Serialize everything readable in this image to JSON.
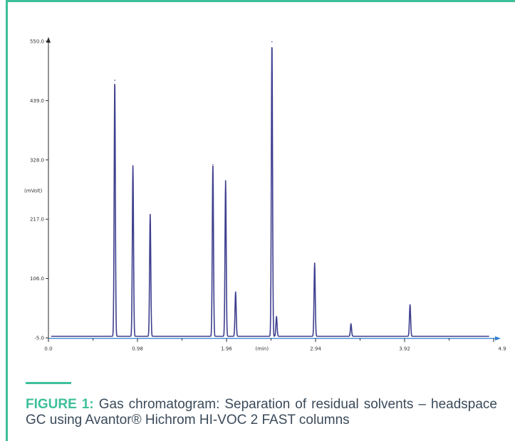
{
  "colors": {
    "accent": "#3dbf9a",
    "frame": "#3dbf9a",
    "trace": "#3f3f8f",
    "axis": "#2a2a2a",
    "x_arrow": "#2f7fd0",
    "caption_text": "#3a4a5a"
  },
  "caption": {
    "label": "FIGURE 1:",
    "text": " Gas chromatogram: Separation of residual solvents – headspace GC using Avantor® Hichrom HI-VOC 2 FAST columns"
  },
  "chart_data": {
    "type": "line",
    "title": "",
    "xlabel": "(min)",
    "ylabel": "(mVolt)",
    "xlim": [
      0.0,
      4.9
    ],
    "ylim": [
      -5.0,
      550.0
    ],
    "y_ticks": [
      "-5.0",
      "106.0",
      "217.0",
      "328.0",
      "439.0",
      "550.0"
    ],
    "x_ticks": [
      "0.0",
      "0.98",
      "1.96",
      "2.94",
      "3.92",
      "4.9"
    ],
    "x_tick_values": [
      0.0,
      0.98,
      1.96,
      2.94,
      3.92,
      4.9
    ],
    "y_tick_values": [
      -5.0,
      106.0,
      217.0,
      328.0,
      439.0,
      550.0
    ],
    "baseline": -2.0,
    "grid": false,
    "legend": "none",
    "peaks": [
      {
        "t": 0.73,
        "height": 477
      },
      {
        "t": 0.93,
        "height": 317
      },
      {
        "t": 1.12,
        "height": 226
      },
      {
        "t": 1.81,
        "height": 319
      },
      {
        "t": 1.95,
        "height": 289
      },
      {
        "t": 2.06,
        "height": 81
      },
      {
        "t": 2.46,
        "height": 549
      },
      {
        "t": 2.51,
        "height": 35
      },
      {
        "t": 2.93,
        "height": 135
      },
      {
        "t": 3.33,
        "height": 21
      },
      {
        "t": 3.98,
        "height": 57
      }
    ]
  }
}
